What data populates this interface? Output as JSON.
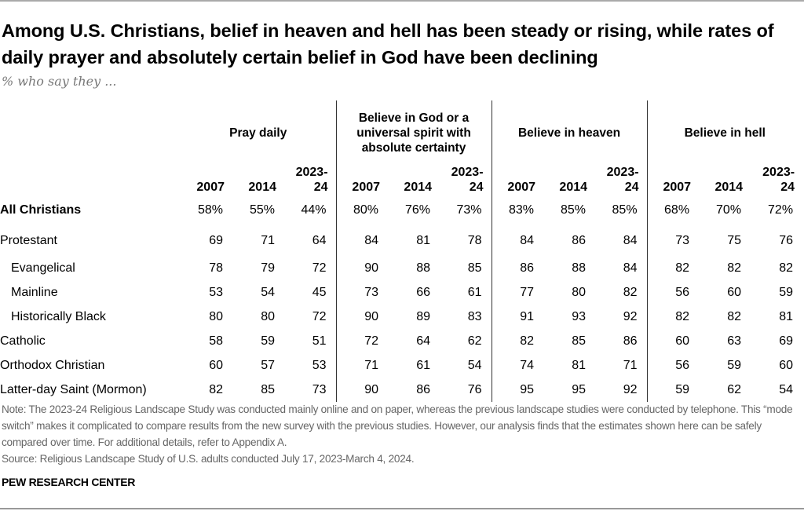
{
  "chart_data": {
    "type": "table",
    "title": "Among U.S. Christians, belief in heaven and hell has been steady or rising, while rates of daily prayer and absolutely certain belief in God have been declining",
    "subtitle": "% who say they ...",
    "groups": [
      "Pray daily",
      "Believe in God or a universal spirit with absolute certainty",
      "Believe in heaven",
      "Believe in hell"
    ],
    "years": [
      "2007",
      "2014",
      "2023-24"
    ],
    "rows": [
      {
        "label": "All Christians",
        "bold": true,
        "indent": false,
        "values": [
          "58%",
          "55%",
          "44%",
          "80%",
          "76%",
          "73%",
          "83%",
          "85%",
          "85%",
          "68%",
          "70%",
          "72%"
        ]
      },
      {
        "label": "Protestant",
        "indent": false,
        "values": [
          "69",
          "71",
          "64",
          "84",
          "81",
          "78",
          "84",
          "86",
          "84",
          "73",
          "75",
          "76"
        ]
      },
      {
        "label": "Evangelical",
        "indent": true,
        "values": [
          "78",
          "79",
          "72",
          "90",
          "88",
          "85",
          "86",
          "88",
          "84",
          "82",
          "82",
          "82"
        ]
      },
      {
        "label": "Mainline",
        "indent": true,
        "values": [
          "53",
          "54",
          "45",
          "73",
          "66",
          "61",
          "77",
          "80",
          "82",
          "56",
          "60",
          "59"
        ]
      },
      {
        "label": "Historically Black",
        "indent": true,
        "values": [
          "80",
          "80",
          "72",
          "90",
          "89",
          "83",
          "91",
          "93",
          "92",
          "82",
          "82",
          "81"
        ]
      },
      {
        "label": "Catholic",
        "indent": false,
        "values": [
          "58",
          "59",
          "51",
          "72",
          "64",
          "62",
          "82",
          "85",
          "86",
          "60",
          "63",
          "69"
        ]
      },
      {
        "label": "Orthodox Christian",
        "indent": false,
        "values": [
          "60",
          "57",
          "53",
          "71",
          "61",
          "54",
          "74",
          "81",
          "71",
          "56",
          "59",
          "60"
        ]
      },
      {
        "label": "Latter-day Saint (Mormon)",
        "indent": false,
        "values": [
          "82",
          "85",
          "73",
          "90",
          "86",
          "76",
          "95",
          "95",
          "92",
          "59",
          "62",
          "54"
        ]
      }
    ],
    "note": "Note: The 2023-24 Religious Landscape Study was conducted mainly online and on paper, whereas the previous landscape studies were conducted by telephone. This “mode switch” makes it complicated to compare results from the new survey with the previous studies. However, our analysis finds that the estimates shown here can be safely compared over time. For additional details, refer to Appendix A.",
    "source": "Source: Religious Landscape Study of U.S. adults conducted July 17, 2023-March 4, 2024.",
    "brand": "PEW RESEARCH CENTER"
  }
}
